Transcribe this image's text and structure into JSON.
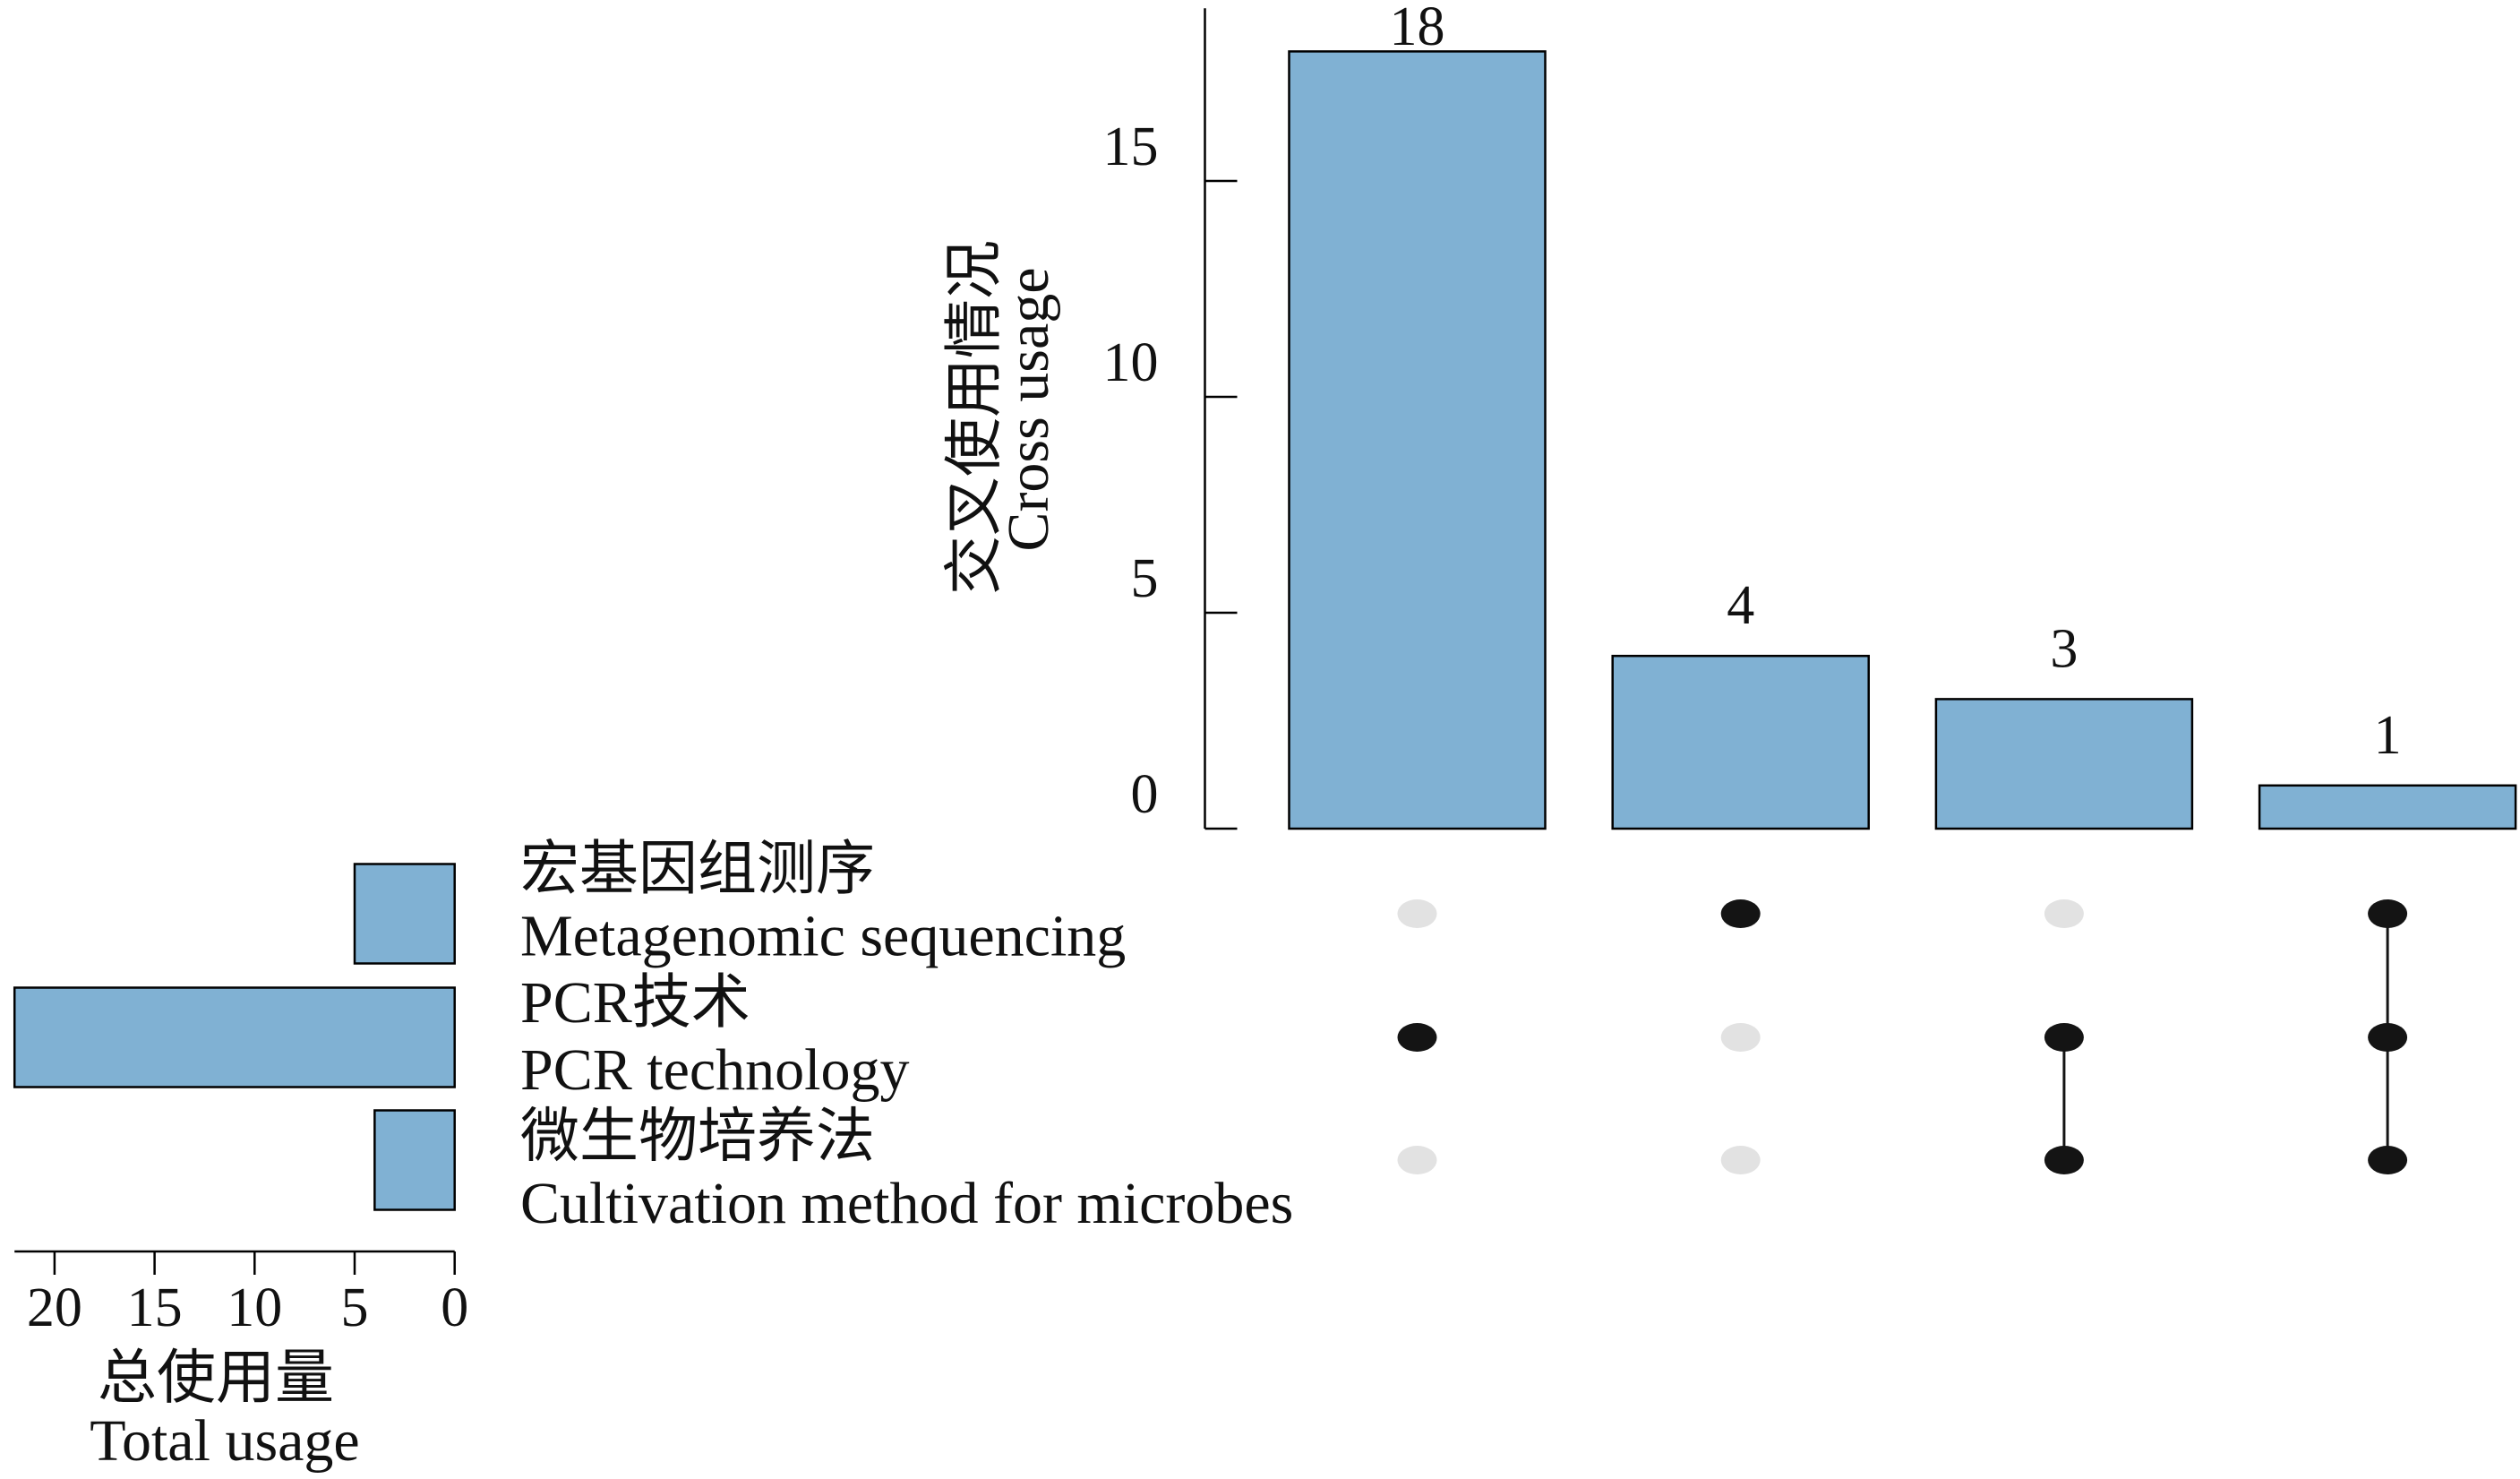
{
  "chart_data": {
    "type": "bar",
    "sets": [
      {
        "name_zh": "宏基因组测序",
        "name_en": "Metagenomic sequencing",
        "total": 5
      },
      {
        "name_zh": "PCR技术",
        "name_en": "PCR technology",
        "total": 22
      },
      {
        "name_zh": "微生物培养法",
        "name_en": "Cultivation method for microbes",
        "total": 4
      }
    ],
    "intersections": [
      {
        "members": [
          false,
          true,
          false
        ],
        "value": 18
      },
      {
        "members": [
          true,
          false,
          false
        ],
        "value": 4
      },
      {
        "members": [
          false,
          true,
          true
        ],
        "value": 3
      },
      {
        "members": [
          true,
          true,
          true
        ],
        "value": 1
      }
    ],
    "intersection_axis": {
      "title_zh": "交叉使用情况",
      "title_en": "Cross usage",
      "ticks": [
        0,
        5,
        10,
        15
      ],
      "range": [
        0,
        19
      ]
    },
    "set_size_axis": {
      "title_zh": "总使用量",
      "title_en": "Total usage",
      "ticks": [
        0,
        5,
        10,
        15,
        20
      ],
      "range": [
        0,
        22
      ],
      "reversed": true
    },
    "grid": false,
    "colors": {
      "bar_fill": "#80b1d3",
      "bar_stroke": "#000000",
      "dot_active": "#141414",
      "dot_inactive": "#e2e2e2"
    }
  }
}
